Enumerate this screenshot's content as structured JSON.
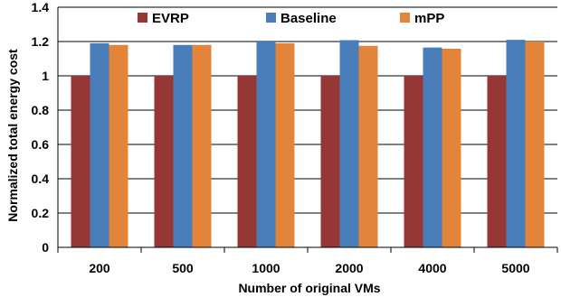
{
  "chart_data": {
    "type": "bar",
    "categories": [
      "200",
      "500",
      "1000",
      "2000",
      "4000",
      "5000"
    ],
    "series": [
      {
        "name": "EVRP",
        "values": [
          1.0,
          1.0,
          1.0,
          1.0,
          1.0,
          1.0
        ],
        "color": "#953735"
      },
      {
        "name": "Baseline",
        "values": [
          1.19,
          1.18,
          1.205,
          1.208,
          1.165,
          1.21
        ],
        "color": "#4a7ebb"
      },
      {
        "name": "mPP",
        "values": [
          1.18,
          1.18,
          1.19,
          1.175,
          1.158,
          1.2
        ],
        "color": "#e3843b"
      }
    ],
    "xlabel": "Number of original VMs",
    "ylabel": "Normalized total energy cost",
    "ylim": [
      0,
      1.4
    ],
    "yticks": [
      "0",
      "0.2",
      "0.4",
      "0.6",
      "0.8",
      "1",
      "1.2",
      "1.4"
    ],
    "grid": true,
    "legend_position": "top"
  }
}
